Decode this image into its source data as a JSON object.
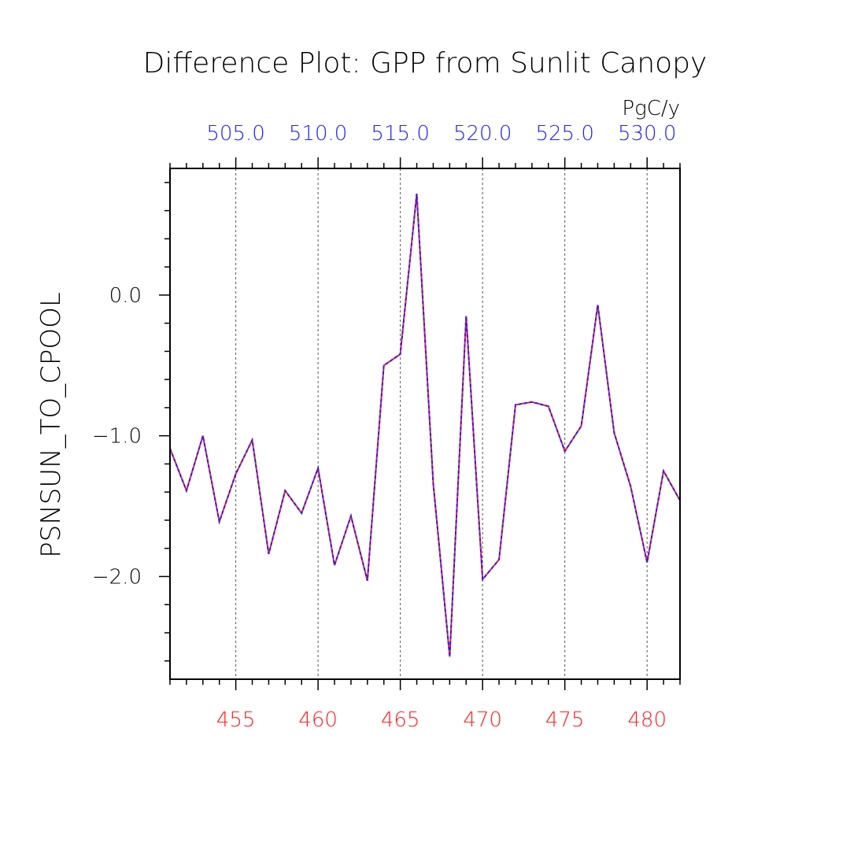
{
  "chart_data": {
    "type": "line",
    "title": "Difference Plot: GPP from Sunlit Canopy",
    "ylabel": "PSNSUN_TO_CPOOL",
    "units_label": "PgC/y",
    "xlim": [
      451,
      482
    ],
    "ylim": [
      -2.73,
      0.9
    ],
    "y_ticks": [
      {
        "value": 0.0,
        "label": "0.0"
      },
      {
        "value": -1.0,
        "label": "−1.0"
      },
      {
        "value": -2.0,
        "label": "−2.0"
      }
    ],
    "x_ticks_bottom": [
      {
        "value": 455,
        "label": "455"
      },
      {
        "value": 460,
        "label": "460"
      },
      {
        "value": 465,
        "label": "465"
      },
      {
        "value": 470,
        "label": "470"
      },
      {
        "value": 475,
        "label": "475"
      },
      {
        "value": 480,
        "label": "480"
      }
    ],
    "x_ticks_top": [
      {
        "value": 455,
        "label": "505.0"
      },
      {
        "value": 460,
        "label": "510.0"
      },
      {
        "value": 465,
        "label": "515.0"
      },
      {
        "value": 470,
        "label": "520.0"
      },
      {
        "value": 475,
        "label": "525.0"
      },
      {
        "value": 480,
        "label": "530.0"
      }
    ],
    "grid": "vertical dashed at major x ticks",
    "series": [
      {
        "color": "#ff2020",
        "style": "solid",
        "x": [
          451,
          452,
          453,
          454,
          455,
          456,
          457,
          458,
          459,
          460,
          461,
          462,
          463,
          464,
          465,
          466,
          467,
          468,
          469,
          470,
          471,
          472,
          473,
          474,
          475,
          476,
          477,
          478,
          479,
          480,
          481,
          482
        ],
        "y": [
          -1.09,
          -1.39,
          -1.0,
          -1.61,
          -1.27,
          -1.03,
          -1.84,
          -1.39,
          -1.55,
          -1.23,
          -1.92,
          -1.57,
          -2.03,
          -0.5,
          -0.42,
          0.72,
          -1.34,
          -2.57,
          -0.15,
          -2.02,
          -1.88,
          -0.78,
          -0.76,
          -0.79,
          -1.11,
          -0.93,
          -0.07,
          -0.98,
          -1.36,
          -1.9,
          -1.25,
          -1.46
        ]
      },
      {
        "color": "#2020ff",
        "style": "dashed",
        "x": [
          451,
          452,
          453,
          454,
          455,
          456,
          457,
          458,
          459,
          460,
          461,
          462,
          463,
          464,
          465,
          466,
          467,
          468,
          469,
          470,
          471,
          472,
          473,
          474,
          475,
          476,
          477,
          478,
          479,
          480,
          481,
          482
        ],
        "y": [
          -1.09,
          -1.39,
          -1.0,
          -1.61,
          -1.27,
          -1.03,
          -1.84,
          -1.39,
          -1.55,
          -1.23,
          -1.92,
          -1.57,
          -2.03,
          -0.5,
          -0.42,
          0.72,
          -1.34,
          -2.57,
          -0.15,
          -2.02,
          -1.88,
          -0.78,
          -0.76,
          -0.79,
          -1.11,
          -0.93,
          -0.07,
          -0.98,
          -1.36,
          -1.9,
          -1.25,
          -1.46
        ]
      }
    ]
  }
}
